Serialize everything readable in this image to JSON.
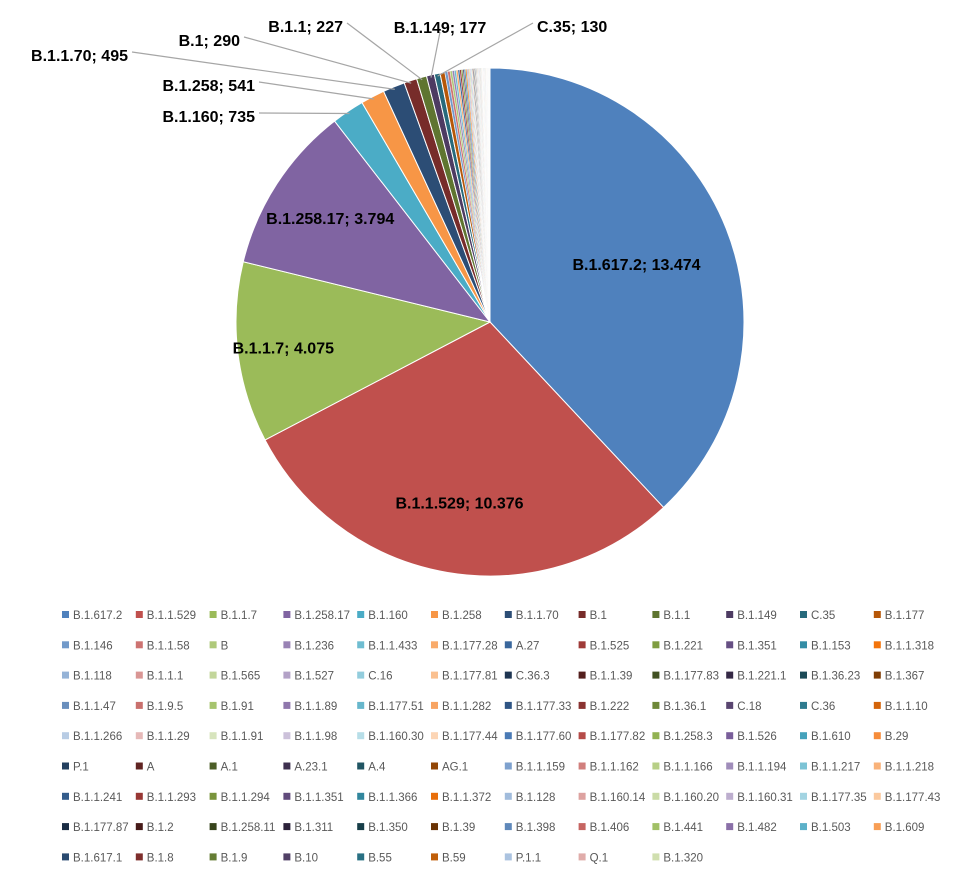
{
  "chart_data": {
    "type": "pie",
    "title": "",
    "legend_position": "bottom",
    "slices": [
      {
        "label": "B.1.617.2",
        "value": 13474,
        "color": "#4F81BD"
      },
      {
        "label": "B.1.1.529",
        "value": 10376,
        "color": "#C0504D"
      },
      {
        "label": "B.1.1.7",
        "value": 4075,
        "color": "#9BBB59"
      },
      {
        "label": "B.1.258.17",
        "value": 3794,
        "color": "#8064A2"
      },
      {
        "label": "B.1.160",
        "value": 735,
        "color": "#4BACC6"
      },
      {
        "label": "B.1.258",
        "value": 541,
        "color": "#F79646"
      },
      {
        "label": "B.1.1.70",
        "value": 495,
        "color": "#2C4D75"
      },
      {
        "label": "B.1",
        "value": 290,
        "color": "#772C2A"
      },
      {
        "label": "B.1.1",
        "value": 227,
        "color": "#5F7530"
      },
      {
        "label": "B.1.149",
        "value": 177,
        "color": "#4D3B62"
      },
      {
        "label": "C.35",
        "value": 130,
        "color": "#276A7C"
      },
      {
        "label": "B.1.177",
        "value": 110,
        "color": "#B65708"
      },
      {
        "label": "B.1.146",
        "value": 60,
        "color": "#729ACA"
      },
      {
        "label": "B.1.1.58",
        "value": 55,
        "color": "#CD7371"
      },
      {
        "label": "B",
        "value": 50,
        "color": "#AFC97A"
      },
      {
        "label": "B.1.236",
        "value": 45,
        "color": "#9983B5"
      },
      {
        "label": "B.1.1.433",
        "value": 42,
        "color": "#6FBDD1"
      },
      {
        "label": "B.1.177.28",
        "value": 40,
        "color": "#F9AB6B"
      },
      {
        "label": "A.27",
        "value": 38,
        "color": "#3A679C"
      },
      {
        "label": "B.1.525",
        "value": 36,
        "color": "#9F3B38"
      },
      {
        "label": "B.1.221",
        "value": 34,
        "color": "#7F9D40"
      },
      {
        "label": "B.1.351",
        "value": 32,
        "color": "#664F83"
      },
      {
        "label": "B.1.153",
        "value": 30,
        "color": "#348DA5"
      },
      {
        "label": "B.1.1.318",
        "value": 28,
        "color": "#F3740B"
      },
      {
        "label": "B.1.118",
        "value": 26,
        "color": "#95B3D7"
      },
      {
        "label": "B.1.1.1",
        "value": 24,
        "color": "#D99694"
      },
      {
        "label": "B.1.565",
        "value": 22,
        "color": "#C3D69B"
      },
      {
        "label": "B.1.527",
        "value": 20,
        "color": "#B3A2C7"
      },
      {
        "label": "C.16",
        "value": 19,
        "color": "#93CDDD"
      },
      {
        "label": "B.1.177.81",
        "value": 18,
        "color": "#FAC090"
      },
      {
        "label": "C.36.3",
        "value": 17,
        "color": "#1F3552"
      },
      {
        "label": "B.1.1.39",
        "value": 16,
        "color": "#531F1D"
      },
      {
        "label": "B.1.177.83",
        "value": 15,
        "color": "#425122"
      },
      {
        "label": "B.1.221.1",
        "value": 14,
        "color": "#352945"
      },
      {
        "label": "B.1.36.23",
        "value": 13,
        "color": "#1B4A57"
      },
      {
        "label": "B.1.367",
        "value": 12,
        "color": "#7F3D05"
      },
      {
        "label": "B.1.1.47",
        "value": 12,
        "color": "#6A8FBD"
      },
      {
        "label": "B.1.9.5",
        "value": 11,
        "color": "#C9706D"
      },
      {
        "label": "B.1.91",
        "value": 11,
        "color": "#A6C46E"
      },
      {
        "label": "B.1.1.89",
        "value": 10,
        "color": "#8F77AC"
      },
      {
        "label": "B.1.177.51",
        "value": 10,
        "color": "#67B7CC"
      },
      {
        "label": "B.1.1.282",
        "value": 10,
        "color": "#F8A462"
      },
      {
        "label": "B.1.177.33",
        "value": 9,
        "color": "#2F5584"
      },
      {
        "label": "B.1.222",
        "value": 9,
        "color": "#8A3331"
      },
      {
        "label": "B.1.36.1",
        "value": 9,
        "color": "#6E8838"
      },
      {
        "label": "C.18",
        "value": 8,
        "color": "#594570"
      },
      {
        "label": "C.36",
        "value": 8,
        "color": "#2E7B8F"
      },
      {
        "label": "B.1.1.10",
        "value": 8,
        "color": "#D36409"
      },
      {
        "label": "B.1.1.266",
        "value": 7,
        "color": "#B8CCE4"
      },
      {
        "label": "B.1.1.29",
        "value": 7,
        "color": "#E6B9B8"
      },
      {
        "label": "B.1.1.91",
        "value": 7,
        "color": "#D7E4BD"
      },
      {
        "label": "B.1.1.98",
        "value": 7,
        "color": "#CCC1DA"
      },
      {
        "label": "B.1.160.30",
        "value": 6,
        "color": "#B7DEE8"
      },
      {
        "label": "B.1.177.44",
        "value": 6,
        "color": "#FCD5B5"
      },
      {
        "label": "B.1.177.60",
        "value": 6,
        "color": "#4A7AB5"
      },
      {
        "label": "B.1.177.82",
        "value": 6,
        "color": "#B54B48"
      },
      {
        "label": "B.1.258.3",
        "value": 6,
        "color": "#92B252"
      },
      {
        "label": "B.1.526",
        "value": 5,
        "color": "#795E9A"
      },
      {
        "label": "B.1.610",
        "value": 5,
        "color": "#45A2BB"
      },
      {
        "label": "B.29",
        "value": 5,
        "color": "#F68C3A"
      },
      {
        "label": "P.1",
        "value": 5,
        "color": "#23405F"
      },
      {
        "label": "A",
        "value": 5,
        "color": "#602422"
      },
      {
        "label": "A.1",
        "value": 4,
        "color": "#4C5E27"
      },
      {
        "label": "A.23.1",
        "value": 4,
        "color": "#3E304F"
      },
      {
        "label": "A.4",
        "value": 4,
        "color": "#205563"
      },
      {
        "label": "AG.1",
        "value": 4,
        "color": "#924606"
      },
      {
        "label": "B.1.1.159",
        "value": 4,
        "color": "#7EA1CE"
      },
      {
        "label": "B.1.1.162",
        "value": 4,
        "color": "#D17F7D"
      },
      {
        "label": "B.1.1.166",
        "value": 4,
        "color": "#B7CF86"
      },
      {
        "label": "B.1.1.194",
        "value": 3,
        "color": "#A08DBA"
      },
      {
        "label": "B.1.1.217",
        "value": 3,
        "color": "#7CC3D5"
      },
      {
        "label": "B.1.1.218",
        "value": 3,
        "color": "#F9B279"
      },
      {
        "label": "B.1.1.241",
        "value": 3,
        "color": "#345C8B"
      },
      {
        "label": "B.1.1.293",
        "value": 3,
        "color": "#983734"
      },
      {
        "label": "B.1.1.294",
        "value": 3,
        "color": "#79943C"
      },
      {
        "label": "B.1.1.351",
        "value": 3,
        "color": "#614B7C"
      },
      {
        "label": "B.1.1.366",
        "value": 3,
        "color": "#31869D"
      },
      {
        "label": "B.1.1.372",
        "value": 3,
        "color": "#E86E0A"
      },
      {
        "label": "B.1.128",
        "value": 3,
        "color": "#A1BCDC"
      },
      {
        "label": "B.1.160.14",
        "value": 2,
        "color": "#DDA2A0"
      },
      {
        "label": "B.1.160.20",
        "value": 2,
        "color": "#CADBA6"
      },
      {
        "label": "B.1.160.31",
        "value": 2,
        "color": "#BDAECE"
      },
      {
        "label": "B.1.177.35",
        "value": 2,
        "color": "#A3D4E2"
      },
      {
        "label": "B.1.177.43",
        "value": 2,
        "color": "#FBC99E"
      },
      {
        "label": "B.1.177.87",
        "value": 2,
        "color": "#1A2C44"
      },
      {
        "label": "B.1.2",
        "value": 2,
        "color": "#461A18"
      },
      {
        "label": "B.1.258.11",
        "value": 2,
        "color": "#37441C"
      },
      {
        "label": "B.1.311",
        "value": 2,
        "color": "#2C223A"
      },
      {
        "label": "B.1.350",
        "value": 2,
        "color": "#173E48"
      },
      {
        "label": "B.1.39",
        "value": 2,
        "color": "#6A3304"
      },
      {
        "label": "B.1.398",
        "value": 2,
        "color": "#5F88BA"
      },
      {
        "label": "B.1.406",
        "value": 2,
        "color": "#C66562"
      },
      {
        "label": "B.1.441",
        "value": 2,
        "color": "#A1C066"
      },
      {
        "label": "B.1.482",
        "value": 2,
        "color": "#8A70A8"
      },
      {
        "label": "B.1.503",
        "value": 2,
        "color": "#5CB1C9"
      },
      {
        "label": "B.1.609",
        "value": 2,
        "color": "#F89E55"
      },
      {
        "label": "B.1.617.1",
        "value": 2,
        "color": "#2A4A70"
      },
      {
        "label": "B.1.8",
        "value": 2,
        "color": "#7E2E2C"
      },
      {
        "label": "B.1.9",
        "value": 2,
        "color": "#657D34"
      },
      {
        "label": "B.10",
        "value": 1,
        "color": "#514066"
      },
      {
        "label": "B.55",
        "value": 1,
        "color": "#297083"
      },
      {
        "label": "B.59",
        "value": 1,
        "color": "#C05E08"
      },
      {
        "label": "P.1.1",
        "value": 1,
        "color": "#ABC3E0"
      },
      {
        "label": "Q.1",
        "value": 1,
        "color": "#E0ACAA"
      },
      {
        "label": "B.1.320",
        "value": 1,
        "color": "#D0DFAF"
      }
    ],
    "inside_labels": [
      {
        "text": "B.1.617.2; 13.474",
        "slice": "B.1.617.2"
      },
      {
        "text": "B.1.1.529; 10.376",
        "slice": "B.1.1.529"
      },
      {
        "text": "B.1.1.7; 4.075",
        "slice": "B.1.1.7"
      },
      {
        "text": "B.1.258.17; 3.794",
        "slice": "B.1.258.17"
      }
    ],
    "callout_labels": [
      {
        "text": "B.1.160; 735",
        "slice": "B.1.160"
      },
      {
        "text": "B.1.258; 541",
        "slice": "B.1.258"
      },
      {
        "text": "B.1.1.70; 495",
        "slice": "B.1.1.70"
      },
      {
        "text": "B.1; 290",
        "slice": "B.1"
      },
      {
        "text": "B.1.1; 227",
        "slice": "B.1.1"
      },
      {
        "text": "B.1.149; 177",
        "slice": "B.1.149"
      },
      {
        "text": "C.35; 130",
        "slice": "C.35"
      }
    ]
  }
}
